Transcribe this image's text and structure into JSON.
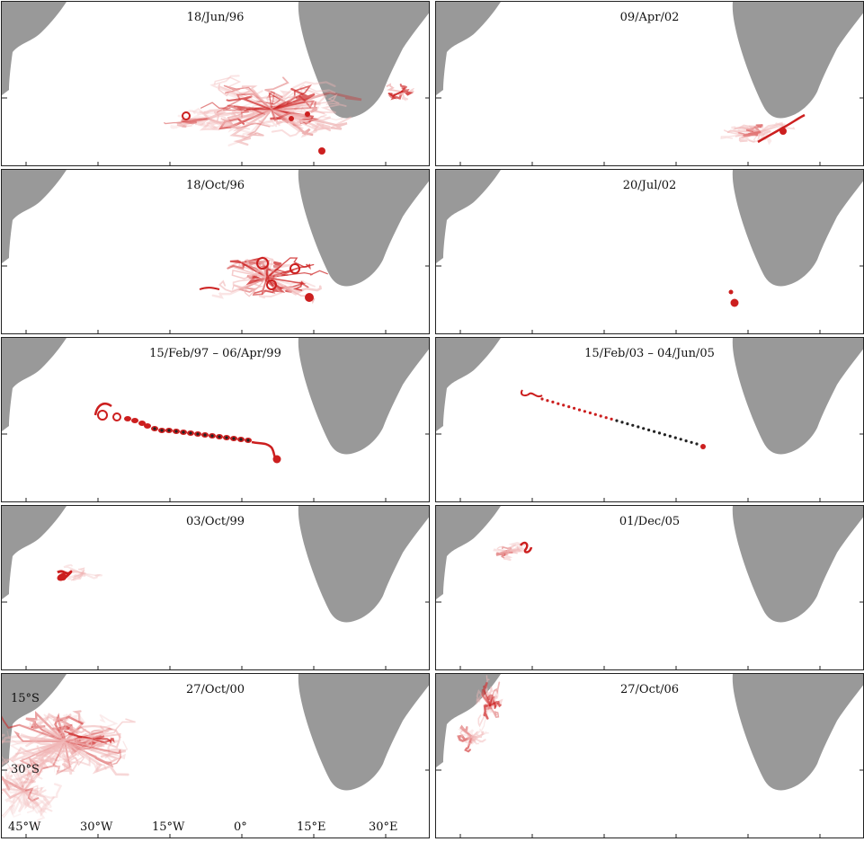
{
  "colors": {
    "land": "#999999",
    "trail": "#cc1f1f",
    "trail_light": "#f1b8b8",
    "dot_dark": "#222222"
  },
  "panels": {
    "p1": {
      "date": "18/Jun/96"
    },
    "p2": {
      "date": "09/Apr/02"
    },
    "p3": {
      "date": "18/Oct/96"
    },
    "p4": {
      "date": "20/Jul/02"
    },
    "p5": {
      "date": "15/Feb/97 – 06/Apr/99"
    },
    "p6": {
      "date": "15/Feb/03 – 04/Jun/05"
    },
    "p7": {
      "date": "03/Oct/99"
    },
    "p8": {
      "date": "01/Dec/05"
    },
    "p9": {
      "date": "27/Oct/00"
    },
    "p10": {
      "date": "27/Oct/06"
    }
  },
  "axes": {
    "lat_labels": [
      "15°S",
      "30°S"
    ],
    "lon_labels": [
      "45°W",
      "30°W",
      "15°W",
      "0°",
      "15°E",
      "30°E"
    ]
  }
}
